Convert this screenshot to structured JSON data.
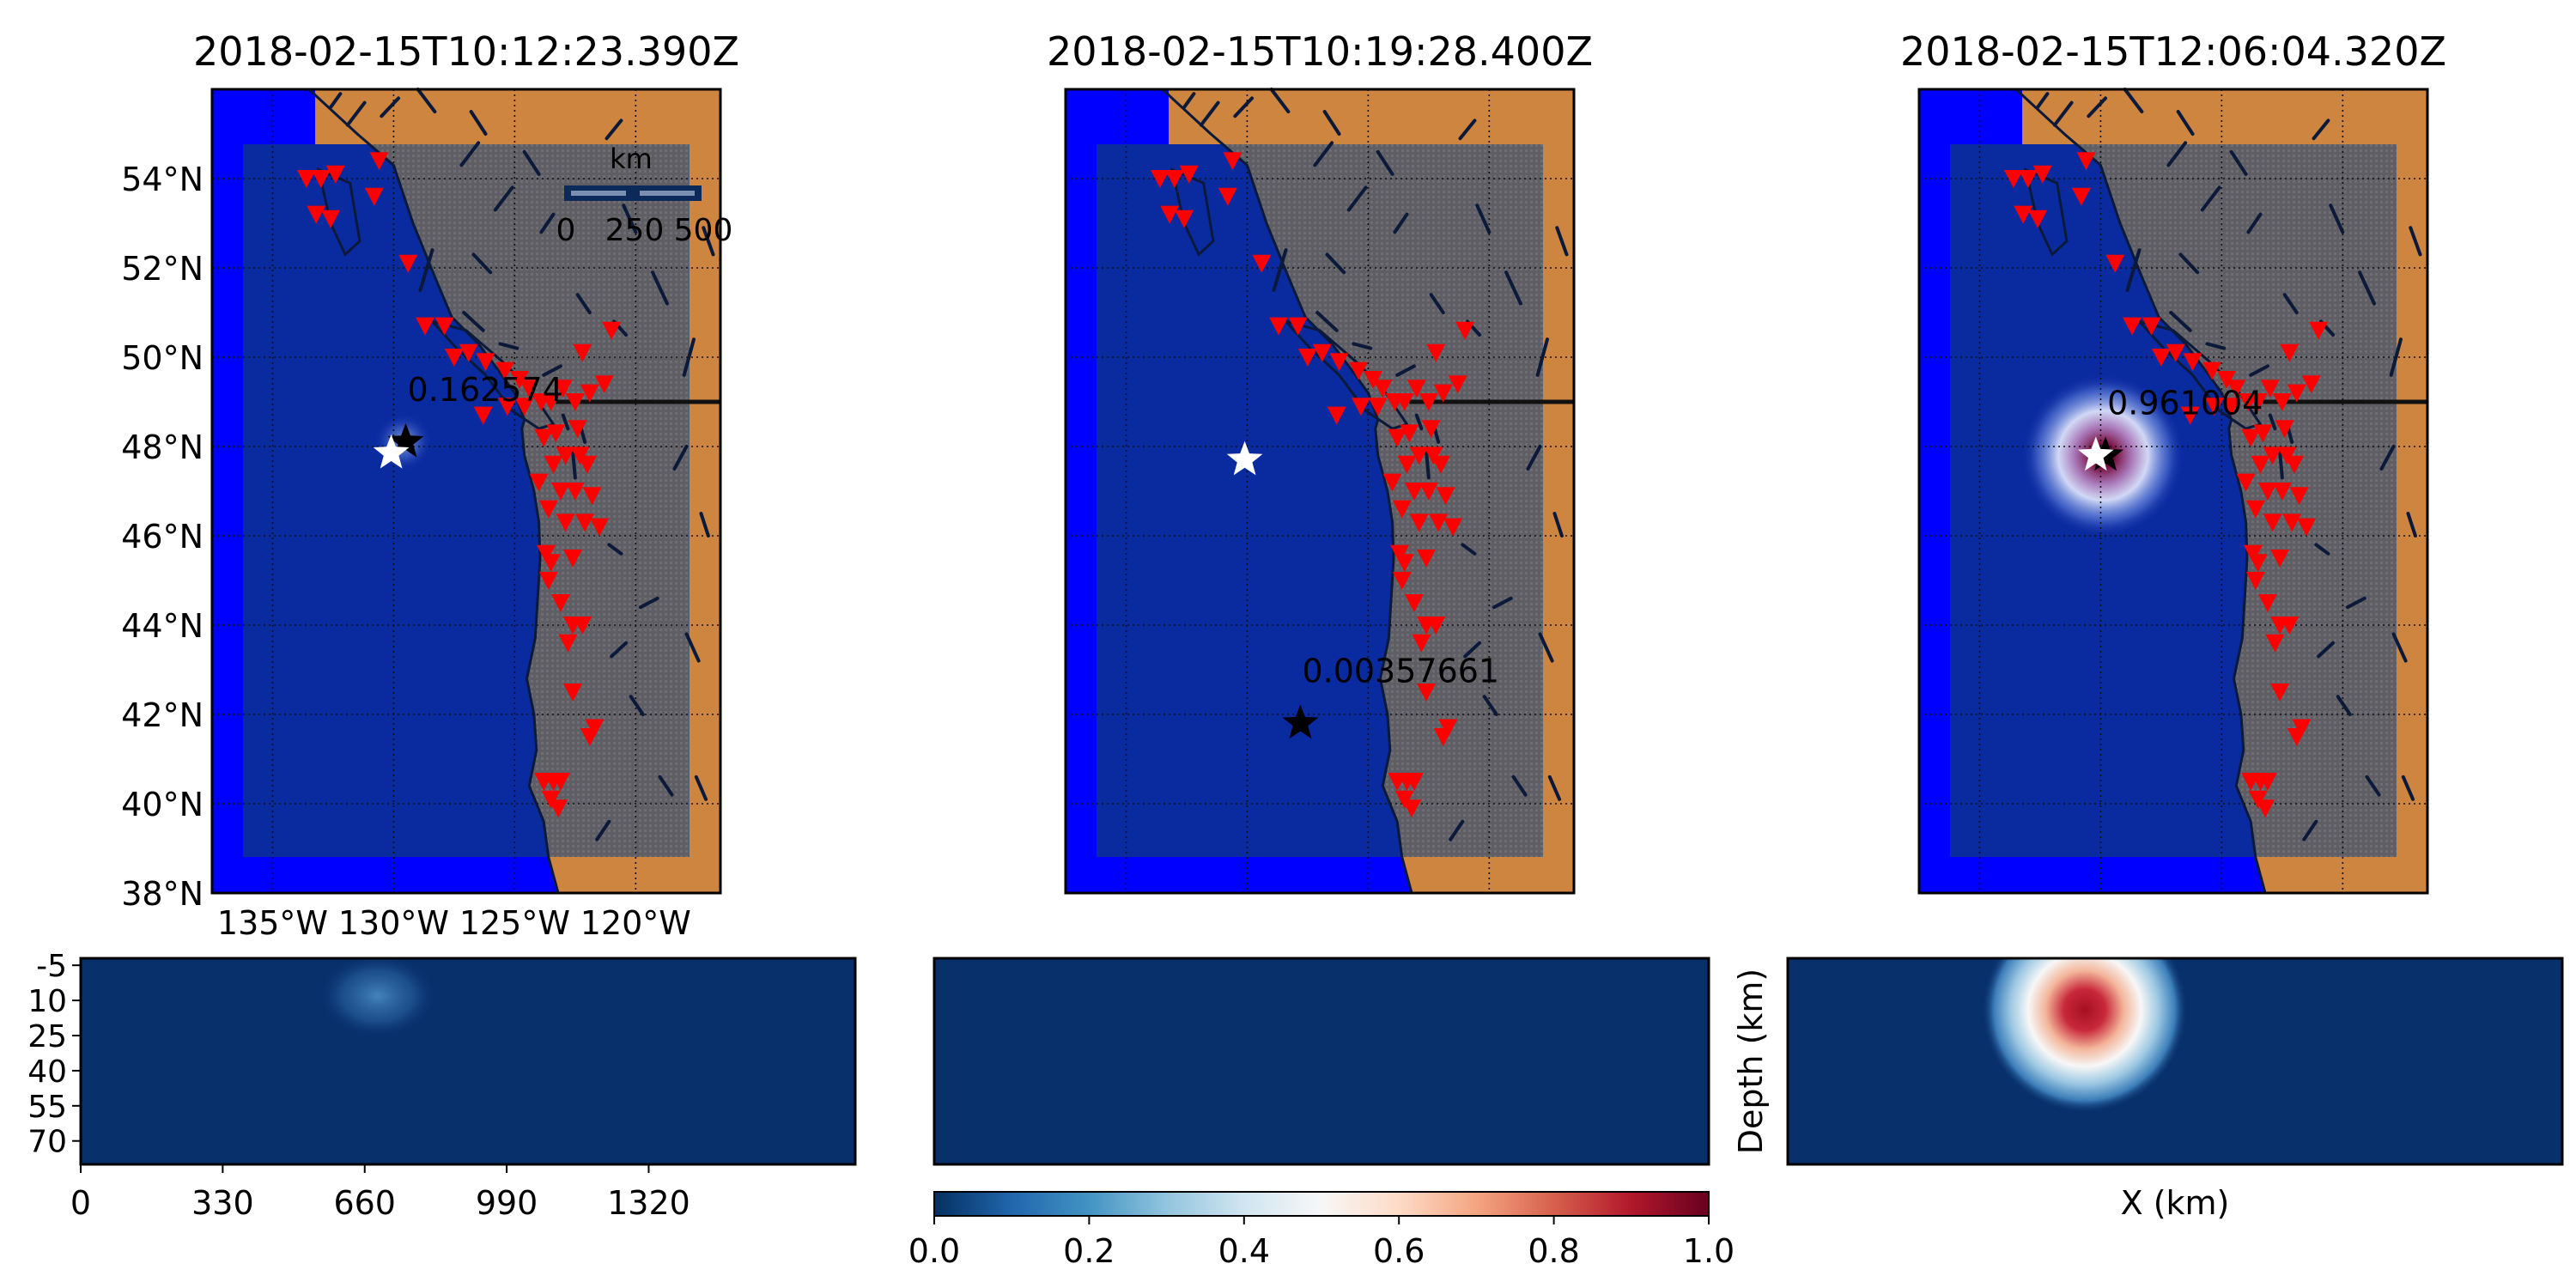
{
  "chart_data": [
    {
      "type": "map",
      "title": "2018-02-15T10:12:23.390Z",
      "lon_range": [
        -137.5,
        -116.5
      ],
      "lat_range": [
        38,
        56
      ],
      "lon_ticks": [
        "135°W",
        "130°W",
        "125°W",
        "120°W"
      ],
      "lat_ticks": [
        "38°N",
        "40°N",
        "42°N",
        "44°N",
        "46°N",
        "48°N",
        "50°N",
        "52°N",
        "54°N"
      ],
      "scalebar": {
        "title": "km",
        "labels": [
          "0",
          "250",
          "500"
        ]
      },
      "true_event": {
        "lon": -130.1,
        "lat": 47.85
      },
      "predicted_event": {
        "lon": -129.5,
        "lat": 48.1,
        "label": "0.162574"
      },
      "heatmap_peak": {
        "lon": -129.6,
        "lat": 48.1,
        "value": 0.16
      }
    },
    {
      "type": "map",
      "title": "2018-02-15T10:19:28.400Z",
      "lon_range": [
        -137.5,
        -116.5
      ],
      "lat_range": [
        38,
        56
      ],
      "true_event": {
        "lon": -130.1,
        "lat": 47.7
      },
      "predicted_event": {
        "lon": -127.8,
        "lat": 41.8,
        "label": "0.00357661"
      },
      "heatmap_peak": null
    },
    {
      "type": "map",
      "title": "2018-02-15T12:06:04.320Z",
      "lon_range": [
        -137.5,
        -116.5
      ],
      "lat_range": [
        38,
        56
      ],
      "true_event": {
        "lon": -130.2,
        "lat": 47.8
      },
      "predicted_event": {
        "lon": -129.8,
        "lat": 47.8,
        "label": "0.961004"
      },
      "heatmap_peak": {
        "lon": -129.9,
        "lat": 47.8,
        "value": 0.96
      }
    },
    {
      "type": "heatmap",
      "x_ticks": [
        "0",
        "330",
        "660",
        "990",
        "1320"
      ],
      "y_ticks": [
        "-5",
        "10",
        "25",
        "40",
        "55",
        "70"
      ],
      "xlabel": "",
      "ylabel": "",
      "peak": {
        "x": 690,
        "depth": 8,
        "value": 0.22
      }
    },
    {
      "type": "heatmap",
      "xlabel": "",
      "ylabel": "",
      "peak": null
    },
    {
      "type": "heatmap",
      "xlabel": "X (km)",
      "ylabel": "Depth (km)",
      "peak": {
        "x": 690,
        "depth": 14,
        "value": 0.96
      }
    }
  ],
  "colorbar": {
    "ticks": [
      "0.0",
      "0.2",
      "0.4",
      "0.6",
      "0.8",
      "1.0"
    ],
    "range": [
      0,
      1
    ]
  },
  "stations": [
    [
      -133.6,
      54.0
    ],
    [
      -133.0,
      54.0
    ],
    [
      -132.4,
      54.1
    ],
    [
      -133.2,
      53.2
    ],
    [
      -132.6,
      53.1
    ],
    [
      -130.6,
      54.4
    ],
    [
      -130.8,
      53.6
    ],
    [
      -129.4,
      52.1
    ],
    [
      -128.7,
      50.7
    ],
    [
      -127.9,
      50.7
    ],
    [
      -127.5,
      50.0
    ],
    [
      -126.9,
      50.1
    ],
    [
      -126.2,
      49.9
    ],
    [
      -125.4,
      49.7
    ],
    [
      -124.8,
      49.5
    ],
    [
      -124.4,
      49.3
    ],
    [
      -126.3,
      48.7
    ],
    [
      -125.3,
      48.9
    ],
    [
      -124.6,
      48.9
    ],
    [
      -123.9,
      49.0
    ],
    [
      -123.5,
      49.0
    ],
    [
      -123.0,
      49.3
    ],
    [
      -122.5,
      49.0
    ],
    [
      -121.9,
      49.2
    ],
    [
      -121.3,
      49.4
    ],
    [
      -122.2,
      50.1
    ],
    [
      -121.0,
      50.6
    ],
    [
      -123.3,
      48.3
    ],
    [
      -123.8,
      48.2
    ],
    [
      -122.4,
      48.4
    ],
    [
      -122.9,
      47.8
    ],
    [
      -122.3,
      47.8
    ],
    [
      -122.0,
      47.6
    ],
    [
      -123.4,
      47.6
    ],
    [
      -124.0,
      47.2
    ],
    [
      -123.1,
      47.0
    ],
    [
      -122.5,
      47.0
    ],
    [
      -121.8,
      46.9
    ],
    [
      -123.6,
      46.6
    ],
    [
      -122.9,
      46.3
    ],
    [
      -122.1,
      46.3
    ],
    [
      -121.5,
      46.2
    ],
    [
      -123.7,
      45.6
    ],
    [
      -123.5,
      45.4
    ],
    [
      -122.6,
      45.5
    ],
    [
      -123.6,
      45.0
    ],
    [
      -123.1,
      44.5
    ],
    [
      -122.6,
      44.0
    ],
    [
      -122.8,
      43.6
    ],
    [
      -122.2,
      44.0
    ],
    [
      -122.6,
      42.5
    ],
    [
      -121.7,
      41.7
    ],
    [
      -121.9,
      41.5
    ],
    [
      -123.8,
      40.5
    ],
    [
      -123.4,
      40.5
    ],
    [
      -123.1,
      40.5
    ],
    [
      -123.5,
      40.1
    ],
    [
      -123.2,
      39.9
    ]
  ]
}
